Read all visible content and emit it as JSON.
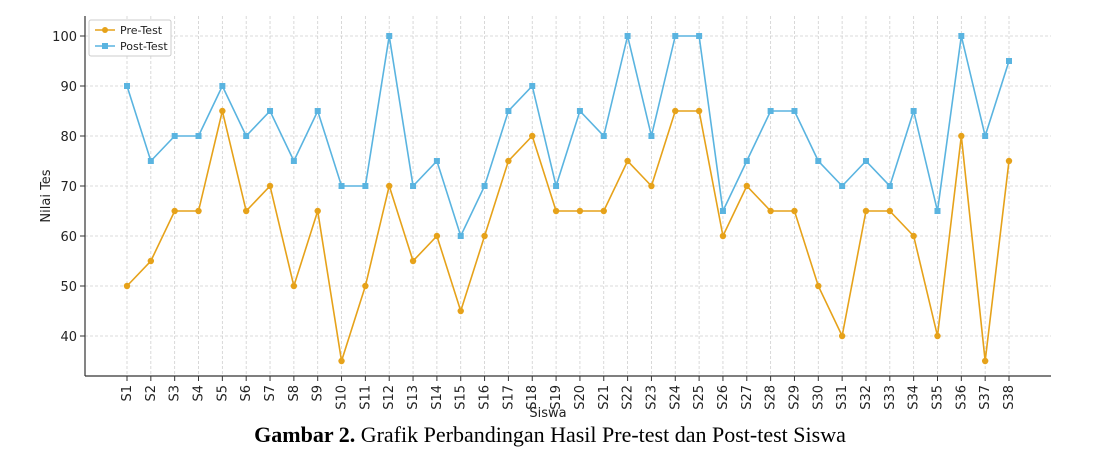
{
  "chart_data": {
    "type": "line",
    "xlabel": "Siswa",
    "ylabel": "Nilai Tes",
    "ylim": [
      32,
      104
    ],
    "yticks": [
      40,
      50,
      60,
      70,
      80,
      90,
      100
    ],
    "grid": true,
    "legend_position": "top-left",
    "categories": [
      "S1",
      "S2",
      "S3",
      "S4",
      "S5",
      "S6",
      "S7",
      "S8",
      "S9",
      "S10",
      "S11",
      "S12",
      "S13",
      "S14",
      "S15",
      "S16",
      "S17",
      "S18",
      "S19",
      "S20",
      "S21",
      "S22",
      "S23",
      "S24",
      "S25",
      "S26",
      "S27",
      "S28",
      "S29",
      "S30",
      "S31",
      "S32",
      "S33",
      "S34",
      "S35",
      "S36",
      "S37",
      "S38"
    ],
    "series": [
      {
        "name": "Pre-Test",
        "color": "#e6a21a",
        "marker": "circle",
        "values": [
          50,
          55,
          65,
          65,
          85,
          65,
          70,
          50,
          65,
          35,
          50,
          70,
          55,
          60,
          45,
          60,
          75,
          80,
          65,
          65,
          65,
          75,
          70,
          85,
          85,
          60,
          70,
          65,
          65,
          50,
          40,
          65,
          65,
          60,
          40,
          80,
          35,
          75
        ]
      },
      {
        "name": "Post-Test",
        "color": "#5ab4e0",
        "marker": "square",
        "values": [
          90,
          75,
          80,
          80,
          90,
          80,
          85,
          75,
          85,
          70,
          70,
          100,
          70,
          75,
          60,
          70,
          85,
          90,
          70,
          85,
          80,
          100,
          80,
          100,
          100,
          65,
          75,
          85,
          85,
          75,
          70,
          75,
          70,
          85,
          65,
          100,
          80,
          95
        ]
      }
    ]
  },
  "caption": {
    "label": "Gambar 2.",
    "text": " Grafik Perbandingan Hasil Pre-test dan Post-test Siswa"
  }
}
